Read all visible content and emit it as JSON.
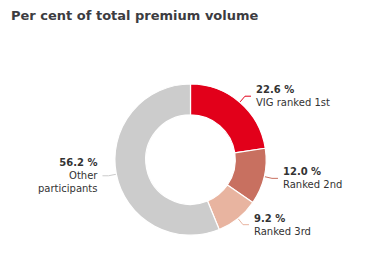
{
  "chart_data": {
    "type": "pie",
    "title": "Per cent of total premium volume",
    "categories": [
      "VIG ranked 1st",
      "Ranked 2nd",
      "Ranked 3rd",
      "Other\nparticipants"
    ],
    "values": [
      22.6,
      12.0,
      9.2,
      56.2
    ],
    "value_labels": [
      "22.6 %",
      "12.0 %",
      "9.2 %",
      "56.2 %"
    ],
    "colors": [
      "#e2001a",
      "#c87060",
      "#e8b4a0",
      "#cccccc"
    ],
    "data_labels": true
  }
}
